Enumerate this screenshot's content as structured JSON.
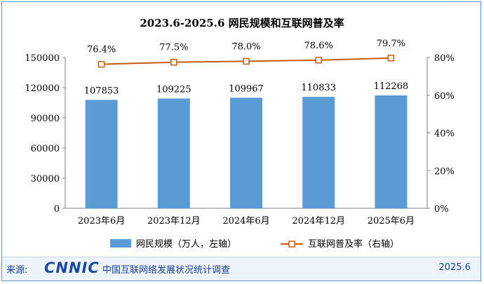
{
  "chart_data": {
    "type": "bar+line",
    "title": "2023.6-2025.6 网民规模和互联网普及率",
    "categories": [
      "2023年6月",
      "2023年12月",
      "2024年6月",
      "2024年12月",
      "2025年6月"
    ],
    "series": [
      {
        "name": "网民规模（万人，左轴）",
        "type": "bar",
        "axis": "left",
        "values": [
          107853,
          109225,
          109967,
          110833,
          112268
        ],
        "labels": [
          "107853",
          "109225",
          "109967",
          "110833",
          "112268"
        ]
      },
      {
        "name": "互联网普及率（右轴）",
        "type": "line",
        "axis": "right",
        "values": [
          76.4,
          77.5,
          78.0,
          78.6,
          79.7
        ],
        "labels": [
          "76.4%",
          "77.5%",
          "78.0%",
          "78.6%",
          "79.7%"
        ]
      }
    ],
    "y_left": {
      "min": 0,
      "max": 150000,
      "ticks": [
        "0",
        "30000",
        "60000",
        "90000",
        "120000",
        "150000"
      ]
    },
    "y_right": {
      "min": 0,
      "max": 80,
      "ticks": [
        "0%",
        "20%",
        "40%",
        "60%",
        "80%"
      ]
    },
    "legend_position": "bottom",
    "colors": {
      "bar": "#5b9bd5",
      "line": "#c55a11",
      "marker_fill": "#ffffff"
    }
  },
  "footer": {
    "source_label": "来源:",
    "logo": "CNNIC",
    "source_text": "中国互联网络发展状况统计调查",
    "date": "2025.6"
  }
}
